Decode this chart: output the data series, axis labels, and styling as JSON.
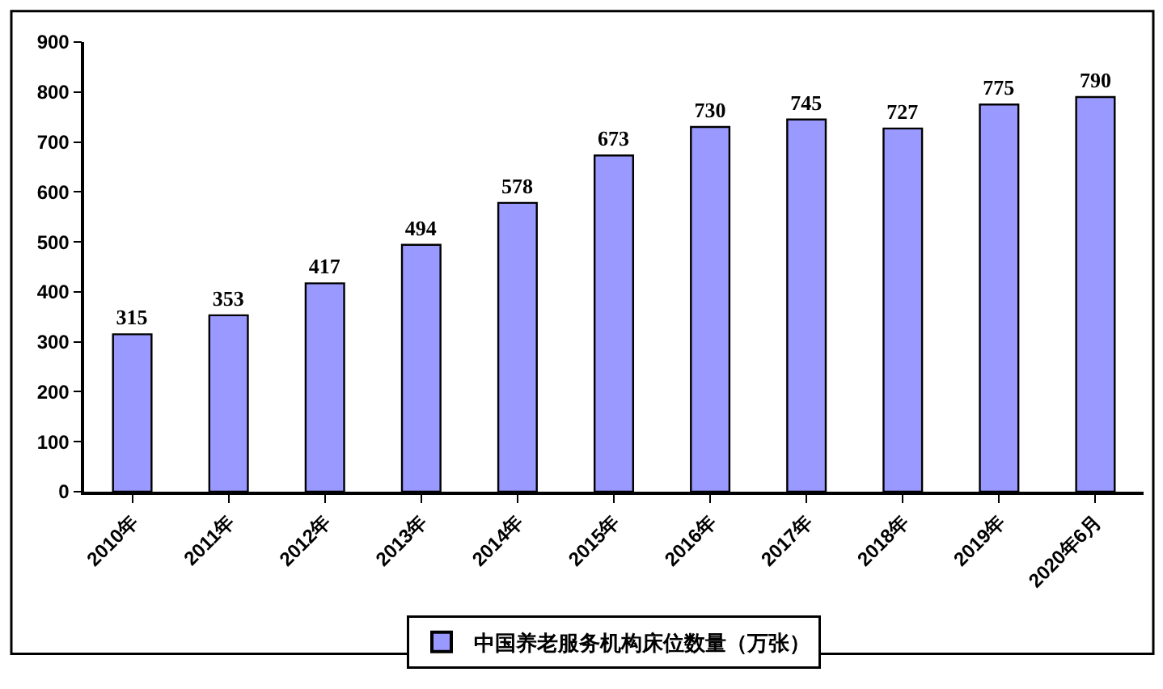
{
  "chart_data": {
    "type": "bar",
    "categories": [
      "2010年",
      "2011年",
      "2012年",
      "2013年",
      "2014年",
      "2015年",
      "2016年",
      "2017年",
      "2018年",
      "2019年",
      "2020年6月"
    ],
    "series": [
      {
        "name": "中国养老服务机构床位数量（万张）",
        "color": "#9999ff",
        "values": [
          315,
          353,
          417,
          494,
          578,
          673,
          730,
          745,
          727,
          775,
          790
        ]
      }
    ],
    "ylim": [
      0,
      900
    ],
    "yticks": [
      0,
      100,
      200,
      300,
      400,
      500,
      600,
      700,
      800,
      900
    ],
    "grid": false,
    "legend": "bottom",
    "data_labels": true
  }
}
